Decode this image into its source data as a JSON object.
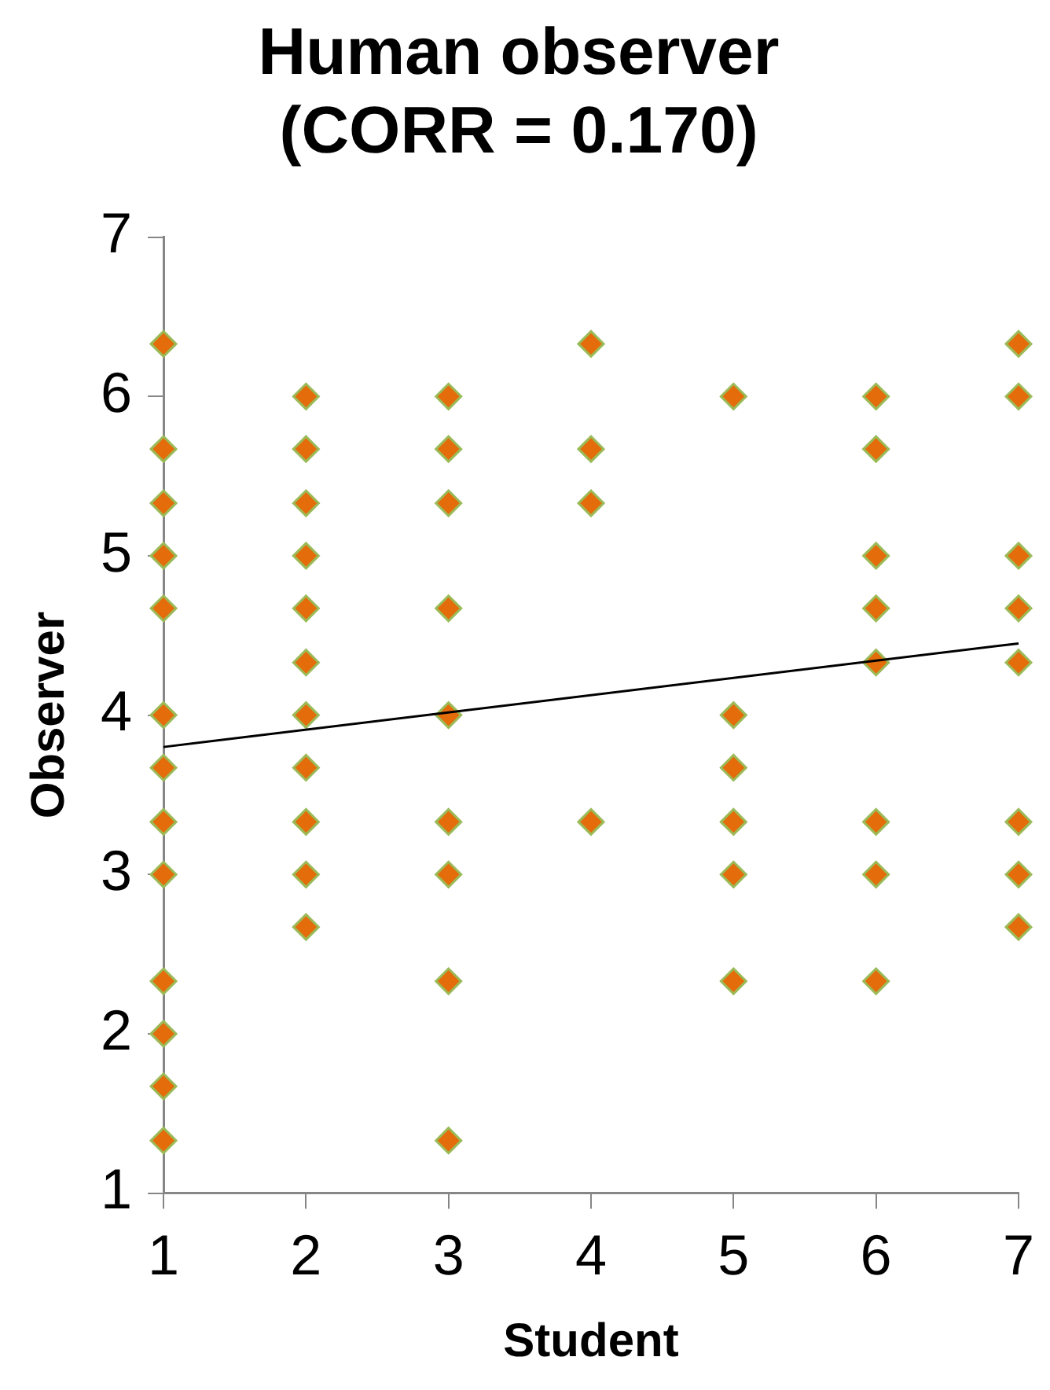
{
  "chart_data": {
    "type": "scatter",
    "title": "Human observer\n(CORR = 0.170)",
    "xlabel": "Student",
    "ylabel": "Observer",
    "xlim": [
      1,
      7
    ],
    "xticks": [
      1,
      2,
      3,
      4,
      5,
      6,
      7
    ],
    "ylim": [
      1,
      7
    ],
    "yticks": [
      1,
      2,
      3,
      4,
      5,
      6,
      7
    ],
    "grid": false,
    "legend": false,
    "marker": "diamond",
    "series": [
      {
        "color": "#e46c0a",
        "x": [
          1,
          1,
          1,
          1,
          1,
          1,
          1,
          1,
          1,
          1,
          1,
          1,
          1,
          2,
          2,
          2,
          2,
          2,
          2,
          2,
          2,
          2,
          2,
          2,
          3,
          3,
          3,
          3,
          3,
          3,
          3,
          3,
          3,
          4,
          4,
          4,
          4,
          5,
          5,
          5,
          5,
          5,
          5,
          6,
          6,
          6,
          6,
          6,
          6,
          6,
          6,
          7,
          7,
          7,
          7,
          7,
          7,
          7,
          7
        ],
        "values": [
          6.33,
          5.67,
          5.33,
          5,
          4.67,
          4,
          3.67,
          3.33,
          3,
          2.33,
          2,
          1.67,
          1.33,
          6,
          5.67,
          5.33,
          5,
          4.67,
          4.33,
          4,
          3.67,
          3.33,
          3,
          2.67,
          6,
          5.67,
          5.33,
          4.67,
          4,
          3.33,
          3,
          2.33,
          1.33,
          6.33,
          5.67,
          5.33,
          3.33,
          6,
          4,
          3.67,
          3.33,
          3,
          2.33,
          6,
          5.67,
          5,
          4.67,
          4.33,
          3.33,
          3,
          2.33,
          6.33,
          6,
          5,
          4.67,
          4.33,
          3.33,
          3,
          2.67
        ]
      },
      {
        "type": "line",
        "color": "#000000",
        "marker": "none",
        "x": [
          1,
          7
        ],
        "values": [
          3.8,
          4.45
        ]
      }
    ]
  }
}
